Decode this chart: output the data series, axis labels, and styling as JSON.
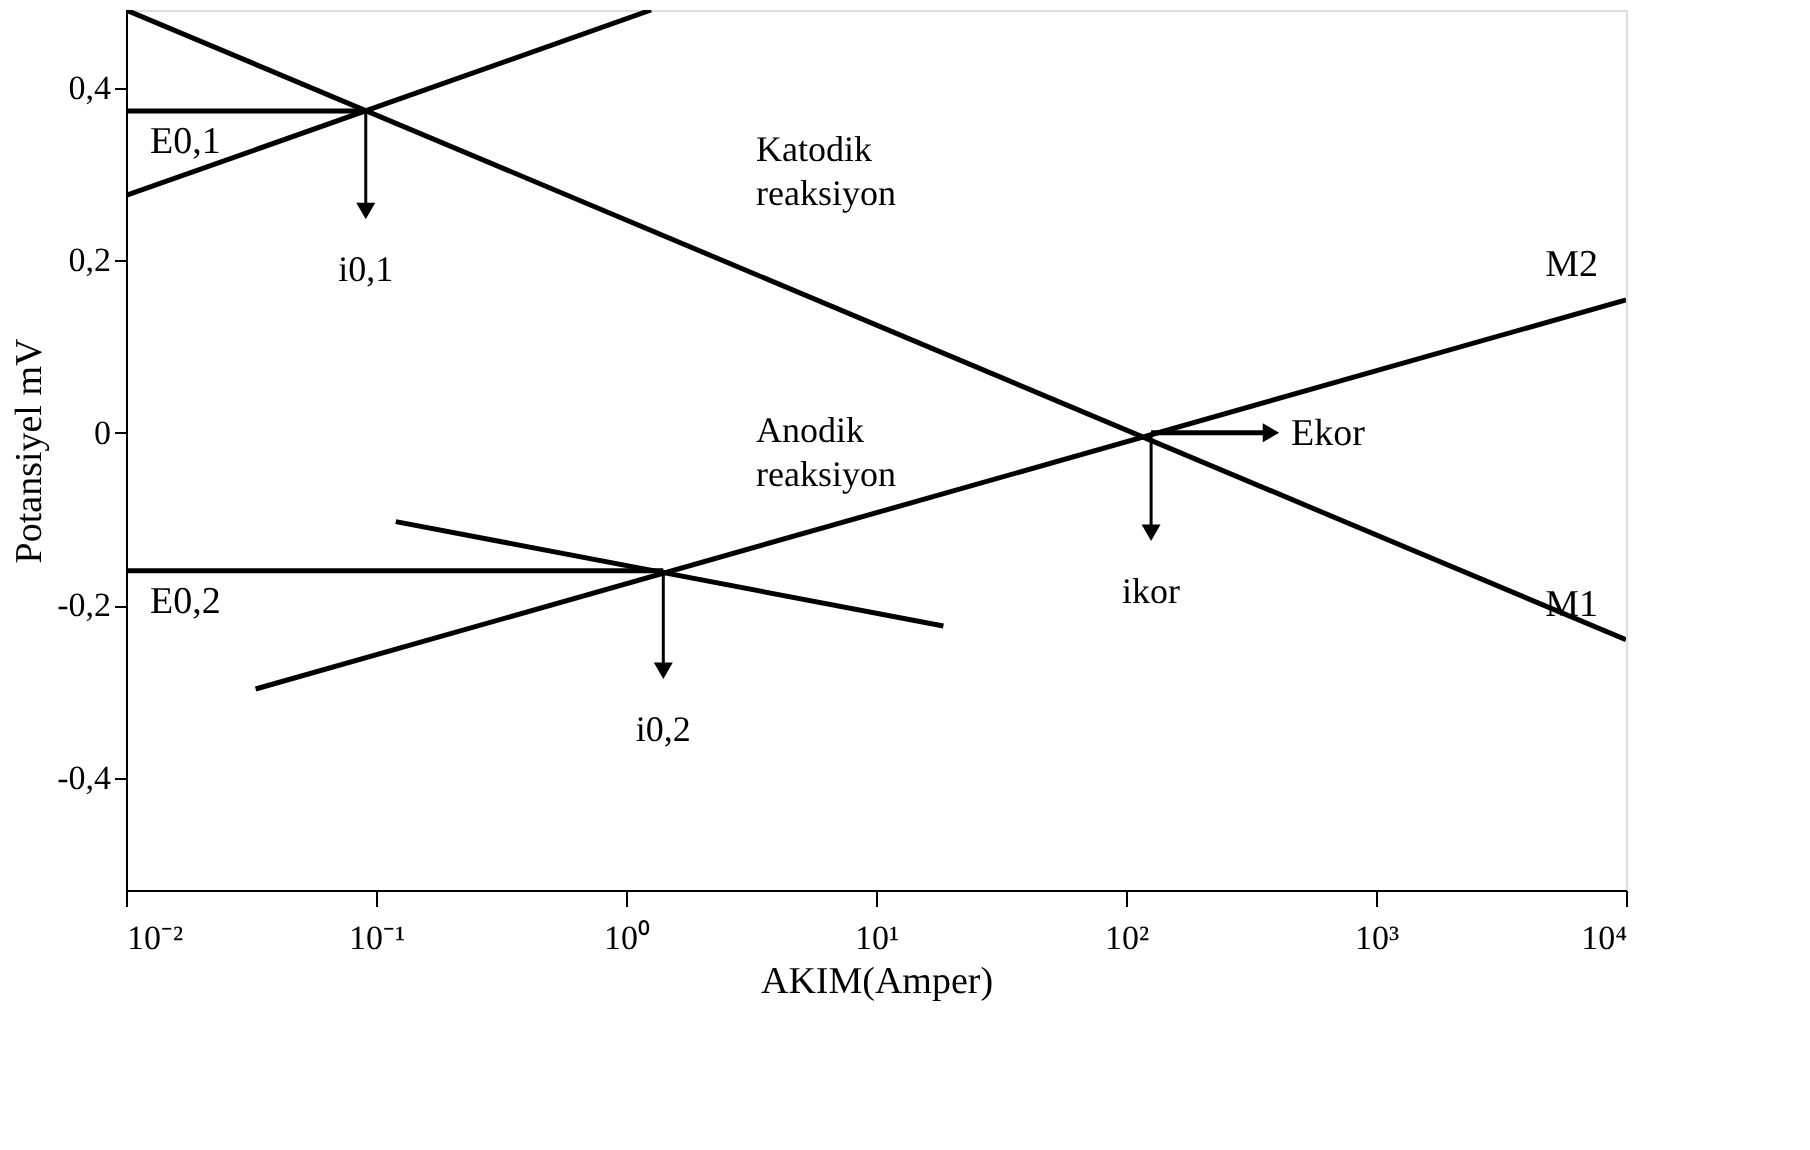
{
  "chart_data": {
    "type": "line",
    "xlabel": "AKIM(Amper)",
    "ylabel": "Potansiyel mV",
    "log": "x",
    "grid": false,
    "xlim": [
      0.01,
      10000
    ],
    "ylim": [
      -0.53,
      0.49
    ],
    "xticks": [
      {
        "value": 0.01,
        "label": "10⁻²"
      },
      {
        "value": 0.1,
        "label": "10⁻¹"
      },
      {
        "value": 1,
        "label": "10⁰"
      },
      {
        "value": 10,
        "label": "10¹"
      },
      {
        "value": 100,
        "label": "10²"
      },
      {
        "value": 1000,
        "label": "10³"
      },
      {
        "value": 10000,
        "label": "10⁴"
      }
    ],
    "yticks": [
      {
        "value": 0.4,
        "label": "0,4"
      },
      {
        "value": 0.2,
        "label": "0,2"
      },
      0,
      {
        "value": -0.2,
        "label": "-0,2"
      },
      {
        "value": -0.4,
        "label": "-0,4"
      }
    ],
    "series": [
      {
        "name": "M1",
        "color": "#000000",
        "x": [
          0.01,
          10000
        ],
        "values": [
          0.49,
          -0.24
        ]
      },
      {
        "color": "#000000",
        "x": [
          0.01,
          1.26
        ],
        "values": [
          0.275,
          0.49
        ]
      },
      {
        "name": "M2",
        "color": "#000000",
        "x": [
          0.033,
          10000
        ],
        "values": [
          -0.297,
          0.154
        ]
      },
      {
        "color": "#000000",
        "x": [
          0.12,
          18.6
        ],
        "values": [
          -0.103,
          -0.224
        ]
      },
      {
        "name": "E0,1",
        "color": "#000000",
        "x": [
          0.01,
          0.091
        ],
        "values": [
          0.373,
          0.373
        ]
      },
      {
        "name": "E0,2",
        "color": "#000000",
        "x": [
          0.01,
          1.41
        ],
        "values": [
          -0.16,
          -0.16
        ]
      },
      {
        "name": "Ekor",
        "color": "#000000",
        "x": [
          126,
          380
        ],
        "values": [
          0,
          0
        ]
      }
    ],
    "annotations": [
      {
        "text": "i0,1",
        "x": 0.091,
        "y": 0.373
      },
      "Katodik\nreaksiyon",
      "Anodik\nreaksiyon",
      {
        "text": "i0,2",
        "x": 1.41,
        "y": -0.16
      },
      {
        "text": "ikor",
        "x": 126,
        "y": 0
      }
    ]
  }
}
